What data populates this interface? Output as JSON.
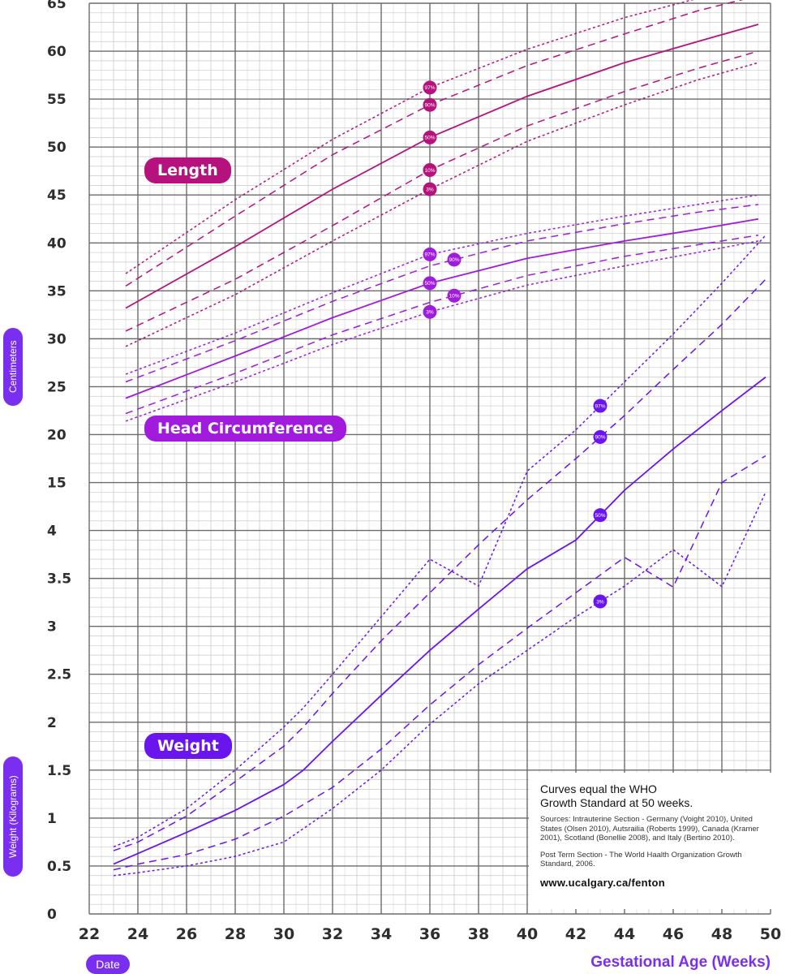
{
  "chart_data": {
    "type": "line",
    "xlabel": "Gestational Age (Weeks)",
    "x_ticks": [
      "22",
      "24",
      "26",
      "28",
      "30",
      "32",
      "34",
      "36",
      "38",
      "40",
      "42",
      "44",
      "46",
      "48",
      "50"
    ],
    "xlim": [
      22,
      50
    ],
    "y_ticks": [
      "0",
      "0.5",
      "1",
      "1.5",
      "2",
      "2.5",
      "3",
      "3.5",
      "4",
      "15",
      "20",
      "25",
      "30",
      "35",
      "40",
      "45",
      "50",
      "55",
      "60",
      "65"
    ],
    "ylabel_upper": "Centimeters",
    "ylabel_lower": "Weight (Kilograms)",
    "grid": true,
    "panels": [
      {
        "name": "Length",
        "color": "#b5127d",
        "units": "cm",
        "series": [
          {
            "percentile": "97%",
            "marker_x": 36,
            "marker_label": "97%",
            "x": [
              23.5,
              28,
              32,
              36,
              40,
              44,
              47,
              49.5
            ],
            "y": [
              36.8,
              44.5,
              50.8,
              56.2,
              60.2,
              63.5,
              65.5,
              67.5
            ]
          },
          {
            "percentile": "90%",
            "marker_x": 36,
            "marker_label": "90%",
            "x": [
              23.5,
              28,
              32,
              36,
              40,
              44,
              47,
              49.5
            ],
            "y": [
              35.5,
              42.8,
              49.2,
              54.4,
              58.5,
              61.8,
              64.2,
              65.8
            ]
          },
          {
            "percentile": "50%",
            "marker_x": 36,
            "marker_label": "50%",
            "x": [
              23.5,
              28,
              32,
              36,
              40,
              44,
              47,
              49.5
            ],
            "y": [
              33.2,
              39.6,
              45.6,
              51.0,
              55.3,
              58.8,
              61.0,
              62.8
            ]
          },
          {
            "percentile": "10%",
            "marker_x": 36,
            "marker_label": "10%",
            "x": [
              23.5,
              28,
              32,
              36,
              40,
              44,
              47,
              49.5
            ],
            "y": [
              30.8,
              36.2,
              41.8,
              47.6,
              52.2,
              55.8,
              58.2,
              60.0
            ]
          },
          {
            "percentile": "3%",
            "marker_x": 36,
            "marker_label": "3%",
            "x": [
              23.5,
              28,
              32,
              36,
              40,
              44,
              47,
              49.5
            ],
            "y": [
              29.2,
              34.6,
              40.2,
              45.6,
              50.6,
              54.4,
              57.0,
              58.8
            ]
          }
        ]
      },
      {
        "name": "Head Circumference",
        "color": "#a11bdc",
        "units": "cm",
        "series": [
          {
            "percentile": "97%",
            "marker_x": 36,
            "marker_label": "97%",
            "x": [
              23.5,
              28,
              32,
              36,
              40,
              44,
              47,
              49.5
            ],
            "y": [
              26.3,
              30.6,
              34.8,
              38.8,
              41.0,
              42.8,
              44.0,
              45.0
            ]
          },
          {
            "percentile": "90%",
            "marker_x": 37,
            "marker_label": "90%",
            "x": [
              23.5,
              28,
              32,
              36,
              40,
              44,
              47,
              49.5
            ],
            "y": [
              25.5,
              29.8,
              33.9,
              37.6,
              40.2,
              42.0,
              43.2,
              44.0
            ]
          },
          {
            "percentile": "50%",
            "marker_x": 36,
            "marker_label": "50%",
            "x": [
              23.5,
              28,
              32,
              36,
              40,
              44,
              47,
              49.5
            ],
            "y": [
              23.8,
              28.2,
              32.2,
              35.8,
              38.4,
              40.2,
              41.4,
              42.5
            ]
          },
          {
            "percentile": "10%",
            "marker_x": 37,
            "marker_label": "10%",
            "x": [
              23.5,
              28,
              32,
              36,
              40,
              44,
              47,
              49.5
            ],
            "y": [
              22.2,
              26.4,
              30.4,
              33.8,
              36.6,
              38.6,
              39.8,
              40.8
            ]
          },
          {
            "percentile": "3%",
            "marker_x": 36,
            "marker_label": "3%",
            "x": [
              23.5,
              28,
              32,
              36,
              40,
              44,
              47,
              49.5
            ],
            "y": [
              21.4,
              25.5,
              29.4,
              32.8,
              35.6,
              37.6,
              39.0,
              40.2
            ]
          }
        ]
      },
      {
        "name": "Weight",
        "color": "#6a14ee",
        "units": "kg",
        "series": [
          {
            "percentile": "97%",
            "marker_x": 43,
            "marker_label": "97%",
            "x": [
              23,
              24,
              26,
              28,
              30,
              30.8,
              32,
              34,
              36,
              38,
              40,
              42,
              44,
              46,
              48,
              49.8
            ],
            "y": [
              0.7,
              0.8,
              1.1,
              1.5,
              1.95,
              2.15,
              2.5,
              3.1,
              3.7,
              4.2,
              16.2,
              20.5,
              25.5,
              30.5,
              35.8,
              40.8
            ]
          },
          {
            "percentile": "90%",
            "marker_x": 43,
            "marker_label": "90%",
            "x": [
              23,
              24,
              26,
              28,
              30,
              30.8,
              32,
              34,
              36,
              38,
              40,
              42,
              44,
              46,
              48,
              49.8
            ],
            "y": [
              0.66,
              0.75,
              1.02,
              1.38,
              1.75,
              1.95,
              2.3,
              2.85,
              3.35,
              3.85,
              13.2,
              17.5,
              22.0,
              26.8,
              31.5,
              36.2
            ]
          },
          {
            "percentile": "50%",
            "marker_x": 43,
            "marker_label": "50%",
            "x": [
              23,
              24,
              26,
              28,
              30,
              30.8,
              32,
              34,
              36,
              38,
              40,
              42,
              44,
              46,
              48,
              49.8
            ],
            "y": [
              0.52,
              0.63,
              0.85,
              1.08,
              1.35,
              1.5,
              1.8,
              2.28,
              2.75,
              3.18,
              3.6,
              3.9,
              14.2,
              18.5,
              22.5,
              26.0
            ]
          },
          {
            "percentile": "10%",
            "marker_x": 43,
            "marker_label": "",
            "x": [
              23,
              24,
              26,
              28,
              30,
              32,
              34,
              36,
              38,
              40,
              42,
              44,
              46,
              48,
              49.8
            ],
            "y": [
              0.46,
              0.52,
              0.62,
              0.78,
              1.02,
              1.32,
              1.72,
              2.18,
              2.6,
              2.98,
              3.35,
              3.72,
              4.1,
              15.0,
              17.8
            ]
          },
          {
            "percentile": "3%",
            "marker_x": 43,
            "marker_label": "3%",
            "x": [
              23,
              24,
              26,
              28,
              30,
              32,
              34,
              36,
              38,
              40,
              42,
              44,
              46,
              48,
              49.8
            ],
            "y": [
              0.4,
              0.43,
              0.5,
              0.6,
              0.75,
              1.1,
              1.5,
              1.98,
              2.4,
              2.75,
              3.1,
              3.42,
              3.8,
              4.15,
              14.0
            ]
          }
        ]
      }
    ]
  },
  "labels": {
    "length": "Length",
    "head": "Head Circumference",
    "weight": "Weight",
    "centimeters": "Centimeters",
    "weight_axis": "Weight (Kilograms)",
    "date_button": "Date",
    "x_title": "Gestational Age (Weeks)"
  },
  "info": {
    "title_line1": "Curves equal the WHO",
    "title_line2": "Growth Standard at 50 weeks.",
    "sources": "Sources: Intrauterine Section - Germany (Voight 2010), United States (Olsen 2010), Autsrailia (Roberts 1999), Canada (Kramer 2001), Scotland (Bonellie 2008), and Italy (Bertino 2010).",
    "post_term": "Post Term Section - The World Haalth Organization Growth Standard, 2006.",
    "url": "www.ucalgary.ca/fenton"
  },
  "colors": {
    "length": "#b5127d",
    "head": "#a11bdc",
    "weight": "#6a14ee",
    "accent": "#7a2ff0",
    "grid_major": "#6b6b6b",
    "grid_minor": "#c9c9c9"
  }
}
